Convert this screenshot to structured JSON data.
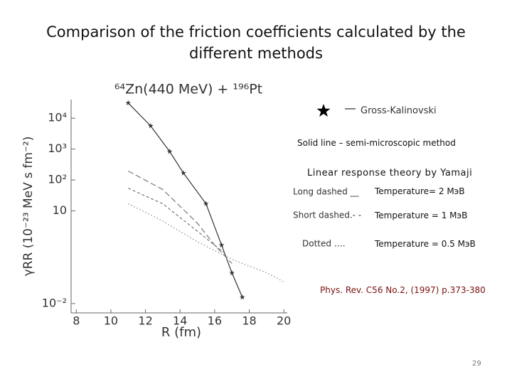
{
  "slide": {
    "title": "Comparison of the friction coefficients calculated by the different methods",
    "solid_line_note": "Solid line – semi-microscopic method",
    "theory_note": "Linear response theory by Yamaji",
    "temperatures": [
      "Temperature= 2 MэB",
      "Temperature = 1 MэB",
      "Temperature = 0.5 MэB"
    ],
    "reference": "Phys. Rev. C56 No.2, (1997) p.373-380",
    "page_number": "29"
  },
  "chart_data": {
    "type": "line",
    "title": "⁶⁴Zn(440 MeV) + ¹⁹⁶Pt",
    "x_label": "R (fm)",
    "y_label": "γRR (10⁻²³ MeV s fm⁻²)",
    "log_y": true,
    "xlim": [
      7.7,
      20.2
    ],
    "xticks": [
      8,
      10,
      12,
      14,
      16,
      18,
      20
    ],
    "ylim": [
      0.005,
      40000
    ],
    "yticks": [
      {
        "value": 10000,
        "label": "10⁴"
      },
      {
        "value": 1000,
        "label": "10³"
      },
      {
        "value": 100,
        "label": "10²"
      },
      10,
      {
        "value": 0.01,
        "label": "10⁻²"
      }
    ],
    "series": [
      {
        "name": "Gross-Kalinovski",
        "color": "#333333",
        "dash": "solid",
        "marker": "star",
        "x": [
          11,
          12.3,
          13.4,
          14.2,
          15.5,
          16.4,
          17,
          17.6
        ],
        "values": [
          31000,
          5600,
          830,
          166,
          17,
          0.78,
          0.098,
          0.016
        ]
      },
      {
        "name": "Long dashed __",
        "color": "#777777",
        "dash": "long",
        "x": [
          11,
          13,
          15,
          16,
          17
        ],
        "values": [
          195,
          49,
          4,
          0.78,
          0.2
        ]
      },
      {
        "name": "Short dashed.- -",
        "color": "#777777",
        "dash": "short",
        "x": [
          11,
          13,
          15,
          16.5
        ],
        "values": [
          54,
          17,
          2.2,
          0.46
        ]
      },
      {
        "name": "Dotted ….",
        "color": "#888888",
        "dash": "dotted",
        "x": [
          11,
          13,
          15,
          17,
          19,
          20
        ],
        "values": [
          17,
          4.7,
          1,
          0.27,
          0.1,
          0.05
        ]
      }
    ]
  }
}
